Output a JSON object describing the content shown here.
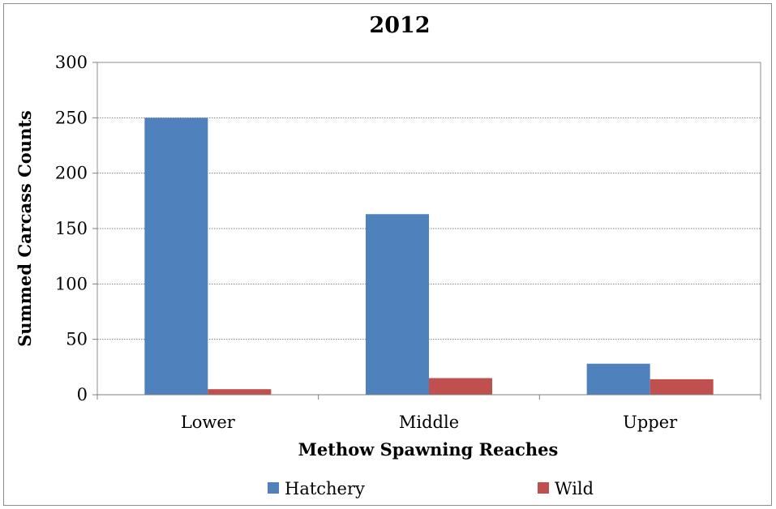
{
  "chart_data": {
    "type": "bar",
    "title": "2012",
    "xlabel": "Methow Spawning Reaches",
    "ylabel": "Summed Carcass Counts",
    "categories": [
      "Lower",
      "Middle",
      "Upper"
    ],
    "series": [
      {
        "name": "Hatchery",
        "values": [
          250,
          163,
          28
        ],
        "color": "#4f81bd"
      },
      {
        "name": "Wild",
        "values": [
          5,
          15,
          14
        ],
        "color": "#c0504d"
      }
    ],
    "ylim": [
      0,
      300
    ],
    "yticks": [
      0,
      50,
      100,
      150,
      200,
      250,
      300
    ],
    "grid": true,
    "legend": "bottom"
  }
}
